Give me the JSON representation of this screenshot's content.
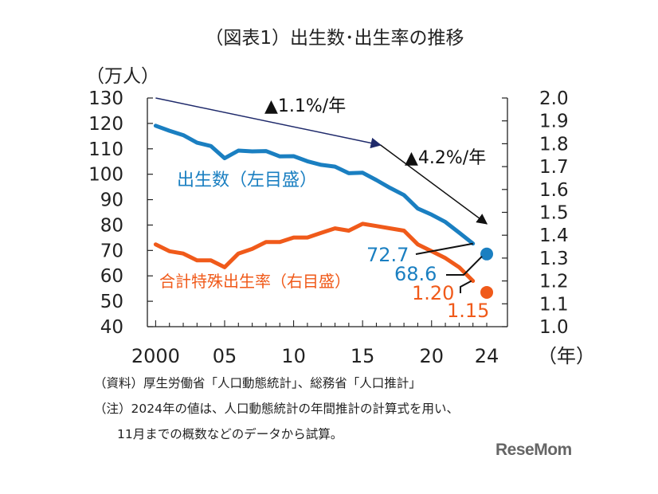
{
  "chart_data": {
    "type": "line",
    "title": "（図表1）出生数･出生率の推移",
    "left_axis": {
      "unit_label": "（万人）",
      "ticks": [
        "130",
        "120",
        "110",
        "100",
        "90",
        "80",
        "70",
        "60",
        "50",
        "40"
      ],
      "ylim": [
        40,
        130
      ]
    },
    "right_axis": {
      "ticks": [
        "2.0",
        "1.9",
        "1.8",
        "1.7",
        "1.6",
        "1.5",
        "1.4",
        "1.3",
        "1.2",
        "1.1",
        "1.0"
      ],
      "ylim": [
        1.0,
        2.0
      ]
    },
    "x_axis": {
      "ticks": [
        "2000",
        "05",
        "10",
        "15",
        "20",
        "24"
      ],
      "tick_years": [
        2000,
        2005,
        2010,
        2015,
        2020,
        2024
      ],
      "unit_label": "（年）",
      "xlim": [
        1999.4,
        2025.5
      ]
    },
    "series": [
      {
        "name": "出生数（左目盛）",
        "axis": "left",
        "color": "#1a7fc1",
        "x": [
          2000,
          2001,
          2002,
          2003,
          2004,
          2005,
          2006,
          2007,
          2008,
          2009,
          2010,
          2011,
          2012,
          2013,
          2014,
          2015,
          2016,
          2017,
          2018,
          2019,
          2020,
          2021,
          2022,
          2023
        ],
        "values": [
          119.1,
          117.1,
          115.4,
          112.4,
          111.1,
          106.3,
          109.3,
          109.0,
          109.1,
          107.0,
          107.1,
          105.1,
          103.7,
          103.0,
          100.4,
          100.6,
          97.7,
          94.6,
          91.8,
          86.5,
          84.1,
          81.2,
          77.0,
          72.7
        ],
        "end_label": "72.7",
        "point_2024": 68.6,
        "point_label": "68.6"
      },
      {
        "name": "合計特殊出生率（右目盛）",
        "axis": "right",
        "color": "#f05a1a",
        "x": [
          2000,
          2001,
          2002,
          2003,
          2004,
          2005,
          2006,
          2007,
          2008,
          2009,
          2010,
          2011,
          2012,
          2013,
          2014,
          2015,
          2016,
          2017,
          2018,
          2019,
          2020,
          2021,
          2022,
          2023
        ],
        "values": [
          1.36,
          1.33,
          1.32,
          1.29,
          1.29,
          1.26,
          1.32,
          1.34,
          1.37,
          1.37,
          1.39,
          1.39,
          1.41,
          1.43,
          1.42,
          1.45,
          1.44,
          1.43,
          1.42,
          1.36,
          1.33,
          1.3,
          1.26,
          1.2
        ],
        "end_label": "1.20",
        "point_2024": 1.15,
        "point_label": "1.15"
      }
    ],
    "annotations": [
      {
        "text": "▲1.1%/年",
        "from": [
          2000,
          130
        ],
        "to": [
          2016.3,
          111.5
        ]
      },
      {
        "text": "▲4.2%/年",
        "from": [
          2016.3,
          111.5
        ],
        "to": [
          2024,
          80.5
        ]
      }
    ]
  },
  "notes": {
    "source": "（資料）厚生労働省「人口動態統計」、総務省「人口推計」",
    "note_line1": "（注）2024年の値は、人口動態統計の年間推計の計算式を用い、",
    "note_line2": "11月までの概数などのデータから試算。"
  },
  "logo_text": "ReseMom"
}
